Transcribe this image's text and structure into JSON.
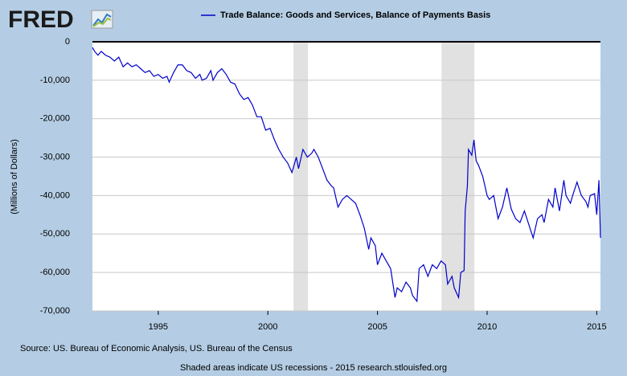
{
  "logo": "FRED",
  "chart_data": {
    "type": "line",
    "y_label": "(Millions of Dollars)",
    "source": "Source: US. Bureau of Economic Analysis, US. Bureau of the Census",
    "footer": "Shaded areas indicate US recessions - 2015 research.stlouisfed.org",
    "xlim": [
      1992,
      2015.17
    ],
    "xticks": [
      1995,
      2000,
      2005,
      2010,
      2015
    ],
    "ylim": [
      -70000,
      0
    ],
    "yticks": [
      {
        "value": -70000,
        "label": "-70,000"
      },
      {
        "value": -60000,
        "label": "-60,000"
      },
      {
        "value": -50000,
        "label": "-50,000"
      },
      {
        "value": -40000,
        "label": "-40,000"
      },
      {
        "value": -30000,
        "label": "-30,000"
      },
      {
        "value": -20000,
        "label": "-20,000"
      },
      {
        "value": -10000,
        "label": "-10,000"
      },
      0
    ],
    "grid": true,
    "recessions": [
      [
        2001.17,
        2001.83
      ],
      [
        2007.92,
        2009.42
      ]
    ],
    "x": [
      1992.0,
      1992.1,
      1992.25,
      1992.4,
      1992.6,
      1992.8,
      1993.0,
      1993.2,
      1993.4,
      1993.6,
      1993.8,
      1994.0,
      1994.2,
      1994.4,
      1994.6,
      1994.8,
      1995.0,
      1995.2,
      1995.4,
      1995.5,
      1995.7,
      1995.9,
      1996.1,
      1996.3,
      1996.5,
      1996.7,
      1996.9,
      1997.0,
      1997.2,
      1997.4,
      1997.5,
      1997.7,
      1997.9,
      1998.1,
      1998.3,
      1998.5,
      1998.7,
      1998.9,
      1999.1,
      1999.3,
      1999.5,
      1999.7,
      1999.9,
      2000.1,
      2000.3,
      2000.5,
      2000.7,
      2000.9,
      2001.1,
      2001.3,
      2001.4,
      2001.6,
      2001.8,
      2002.0,
      2002.1,
      2002.3,
      2002.5,
      2002.7,
      2002.9,
      2003.0,
      2003.2,
      2003.4,
      2003.6,
      2003.8,
      2004.0,
      2004.2,
      2004.4,
      2004.6,
      2004.7,
      2004.9,
      2005.0,
      2005.2,
      2005.4,
      2005.6,
      2005.8,
      2005.9,
      2006.1,
      2006.3,
      2006.5,
      2006.6,
      2006.8,
      2006.9,
      2007.1,
      2007.3,
      2007.5,
      2007.7,
      2007.9,
      2008.1,
      2008.2,
      2008.4,
      2008.5,
      2008.7,
      2008.8,
      2008.95,
      2009.0,
      2009.1,
      2009.15,
      2009.3,
      2009.4,
      2009.5,
      2009.6,
      2009.8,
      2010.0,
      2010.1,
      2010.3,
      2010.5,
      2010.7,
      2010.9,
      2011.1,
      2011.3,
      2011.5,
      2011.7,
      2011.9,
      2012.1,
      2012.3,
      2012.5,
      2012.6,
      2012.8,
      2013.0,
      2013.1,
      2013.3,
      2013.5,
      2013.6,
      2013.8,
      2013.9,
      2014.1,
      2014.3,
      2014.5,
      2014.6,
      2014.7,
      2014.9,
      2015.0,
      2015.1,
      2015.17
    ],
    "series": [
      {
        "name": "Trade Balance: Goods and Services, Balance of Payments Basis",
        "color": "#0000cc",
        "values": [
          -1500,
          -2500,
          -3500,
          -2500,
          -3500,
          -4000,
          -5000,
          -4000,
          -6500,
          -5500,
          -6500,
          -6000,
          -7000,
          -8000,
          -7500,
          -9000,
          -8500,
          -9500,
          -9000,
          -10500,
          -8000,
          -6000,
          -6000,
          -7500,
          -8000,
          -9500,
          -8500,
          -10000,
          -9500,
          -7500,
          -10000,
          -8000,
          -7000,
          -8500,
          -10500,
          -11000,
          -13500,
          -15000,
          -14500,
          -16500,
          -19500,
          -19500,
          -23000,
          -22500,
          -25500,
          -28000,
          -30000,
          -31500,
          -34000,
          -30000,
          -33000,
          -28000,
          -30000,
          -29000,
          -28000,
          -30000,
          -33000,
          -36000,
          -37500,
          -38000,
          -43000,
          -41000,
          -40000,
          -41000,
          -42000,
          -45000,
          -48500,
          -54000,
          -51000,
          -53000,
          -58000,
          -55000,
          -57000,
          -59000,
          -66500,
          -64000,
          -65000,
          -62500,
          -64000,
          -66000,
          -67500,
          -59000,
          -58000,
          -61000,
          -58000,
          -59000,
          -57000,
          -58000,
          -63000,
          -61000,
          -64000,
          -66500,
          -60000,
          -59500,
          -44000,
          -37500,
          -28000,
          -29500,
          -25500,
          -31000,
          -32000,
          -35000,
          -40000,
          -41000,
          -40000,
          -46000,
          -43000,
          -38000,
          -43500,
          -46000,
          -47000,
          -44000,
          -47500,
          -51000,
          -46000,
          -45000,
          -47000,
          -41000,
          -43000,
          -38000,
          -44000,
          -36000,
          -40000,
          -42000,
          -40000,
          -36500,
          -40000,
          -41500,
          -43000,
          -40000,
          -39500,
          -45000,
          -36000,
          -51000
        ]
      }
    ]
  }
}
